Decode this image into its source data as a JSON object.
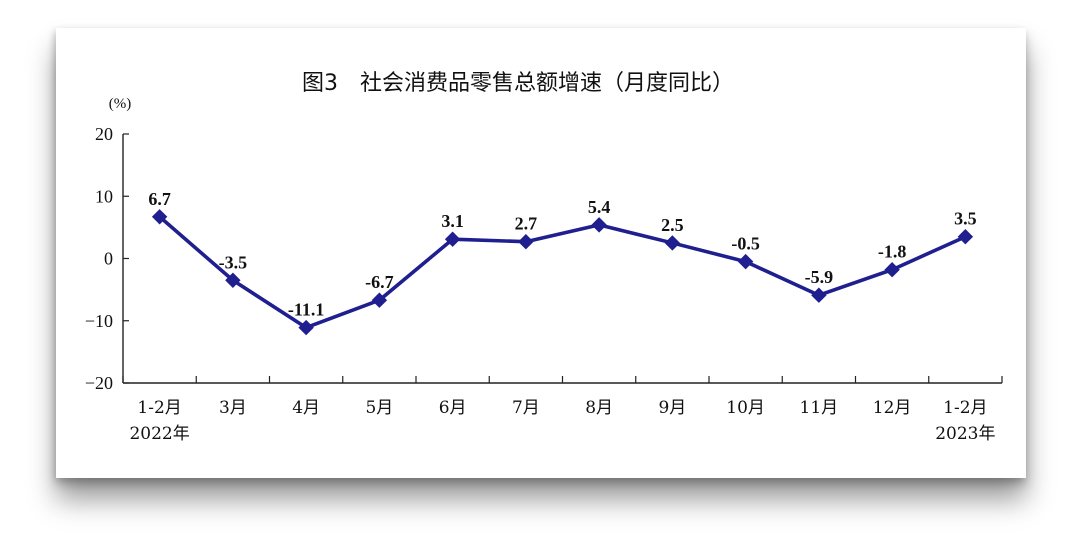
{
  "chart_data": {
    "type": "line",
    "title": "图3　社会消费品零售总额增速（月度同比）",
    "unit_label": "(%)",
    "categories": [
      "1-2月",
      "3月",
      "4月",
      "5月",
      "6月",
      "7月",
      "8月",
      "9月",
      "10月",
      "11月",
      "12月",
      "1-2月"
    ],
    "category_sublabels": [
      "2022年",
      "",
      "",
      "",
      "",
      "",
      "",
      "",
      "",
      "",
      "",
      "2023年"
    ],
    "series": [
      {
        "values": [
          6.7,
          -3.5,
          -11.1,
          -6.7,
          3.1,
          2.7,
          5.4,
          2.5,
          -0.5,
          -5.9,
          -1.8,
          3.5
        ]
      }
    ],
    "data_labels": [
      "6.7",
      "-3.5",
      "-11.1",
      "-6.7",
      "3.1",
      "2.7",
      "5.4",
      "2.5",
      "-0.5",
      "-5.9",
      "-1.8",
      "3.5"
    ],
    "ylim": [
      -20,
      20
    ],
    "yticks": [
      20,
      10,
      0,
      -10,
      -20
    ],
    "ytick_labels": [
      "20",
      "10",
      "0",
      "−10",
      "−20"
    ],
    "line_color": "#1f1f8f",
    "marker": "diamond",
    "grid": false
  }
}
